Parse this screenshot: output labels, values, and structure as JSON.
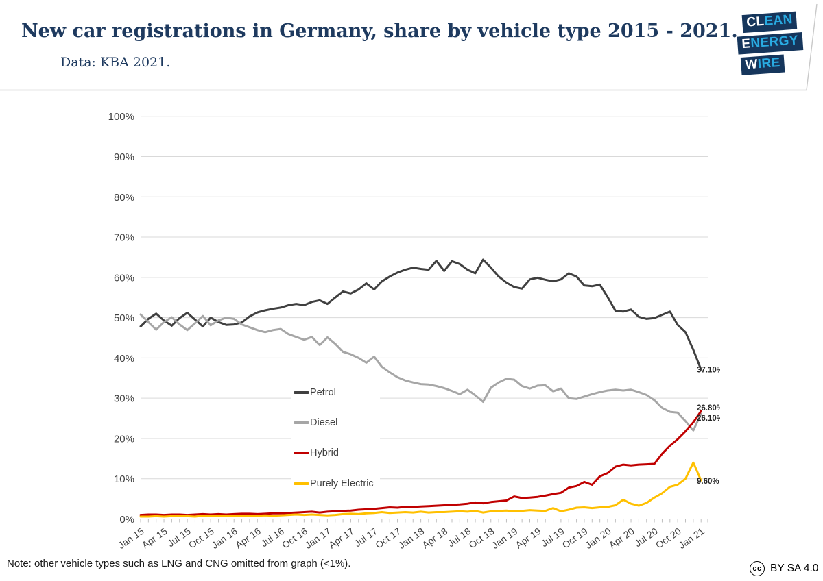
{
  "header": {
    "title": "New car registrations in Germany, share by vehicle type 2015 - 2021.",
    "subtitle": "Data: KBA 2021.",
    "logo": {
      "navy": "#16365c",
      "cyan": "#29abe2",
      "lines": [
        {
          "accent": "CL",
          "rest": "EAN"
        },
        {
          "accent": "E",
          "rest": "NERGY"
        },
        {
          "accent": "W",
          "rest": "IRE"
        }
      ]
    }
  },
  "footer": {
    "note": "Note: other vehicle types such as LNG and CNG omitted from graph (<1%).",
    "license_icon_text": "cc",
    "license": "BY SA 4.0"
  },
  "chart_data": {
    "type": "line",
    "title": "New car registrations in Germany, share by vehicle type 2015 - 2021.",
    "xlabel": "",
    "ylabel": "",
    "ylim": [
      0,
      100
    ],
    "grid": "horizontal",
    "grid_color": "#d9d9d9",
    "axis_color": "#bfbfbf",
    "tick_label_color": "#404040",
    "legend_position": "inside-center-left",
    "y_tick_labels": [
      "0%",
      "10%",
      "20%",
      "30%",
      "40%",
      "50%",
      "60%",
      "70%",
      "80%",
      "90%",
      "100%"
    ],
    "x_tick_labels": [
      "Jan 15",
      "Apr 15",
      "Jul 15",
      "Oct 15",
      "Jan 16",
      "Apr 16",
      "Jul 16",
      "Oct 16",
      "Jan 17",
      "Apr 17",
      "Jul 17",
      "Oct 17",
      "Jan 18",
      "Apr 18",
      "Jul 18",
      "Oct 18",
      "Jan 19",
      "Apr 19",
      "Jul 19",
      "Oct 19",
      "Jan 20",
      "Apr 20",
      "Jul 20",
      "Oct 20",
      "Jan 21"
    ],
    "x_tick_step": 3,
    "months_count": 73,
    "series": [
      {
        "name": "Petrol",
        "color": "#404040",
        "end_label": "37.10%",
        "values": [
          47.8,
          49.7,
          51.0,
          49.3,
          48.0,
          49.9,
          51.2,
          49.5,
          47.8,
          50.0,
          48.9,
          48.2,
          48.3,
          48.8,
          50.3,
          51.3,
          51.8,
          52.2,
          52.5,
          53.1,
          53.4,
          53.1,
          53.9,
          54.3,
          53.4,
          55.0,
          56.5,
          56.0,
          57.0,
          58.5,
          57.0,
          59.0,
          60.2,
          61.2,
          61.9,
          62.4,
          62.1,
          61.9,
          64.1,
          61.6,
          64.0,
          63.3,
          61.9,
          61.0,
          64.4,
          62.4,
          60.2,
          58.7,
          57.6,
          57.2,
          59.5,
          59.9,
          59.4,
          59.0,
          59.5,
          61.0,
          60.2,
          58.0,
          57.8,
          58.2,
          55.1,
          51.7,
          51.5,
          52.0,
          50.2,
          49.7,
          49.9,
          50.7,
          51.5,
          48.2,
          46.4,
          42.0,
          37.1
        ]
      },
      {
        "name": "Diesel",
        "color": "#a6a6a6",
        "end_label": "26.10%",
        "values": [
          50.8,
          48.9,
          47.0,
          48.9,
          50.1,
          48.3,
          46.9,
          48.6,
          50.4,
          48.1,
          49.3,
          50.0,
          49.7,
          48.3,
          47.6,
          46.9,
          46.4,
          46.9,
          47.2,
          45.9,
          45.2,
          44.5,
          45.2,
          43.2,
          45.1,
          43.5,
          41.5,
          40.9,
          40.0,
          38.8,
          40.3,
          37.8,
          36.4,
          35.2,
          34.4,
          33.9,
          33.5,
          33.4,
          33.0,
          32.5,
          31.8,
          31.0,
          32.1,
          30.7,
          29.1,
          32.6,
          33.9,
          34.8,
          34.6,
          33.0,
          32.4,
          33.1,
          33.2,
          31.7,
          32.4,
          30.0,
          29.8,
          30.4,
          31.0,
          31.5,
          31.9,
          32.1,
          31.9,
          32.1,
          31.5,
          30.8,
          29.5,
          27.6,
          26.6,
          26.4,
          24.3,
          22.0,
          26.1
        ]
      },
      {
        "name": "Hybrid",
        "color": "#c00000",
        "end_label": "26.80%",
        "values": [
          1.0,
          1.1,
          1.1,
          1.0,
          1.1,
          1.1,
          1.0,
          1.1,
          1.2,
          1.1,
          1.2,
          1.1,
          1.2,
          1.3,
          1.3,
          1.2,
          1.3,
          1.4,
          1.4,
          1.5,
          1.6,
          1.7,
          1.8,
          1.6,
          1.8,
          1.9,
          2.0,
          2.1,
          2.3,
          2.4,
          2.5,
          2.7,
          2.9,
          2.8,
          3.0,
          3.0,
          3.1,
          3.2,
          3.3,
          3.4,
          3.5,
          3.6,
          3.8,
          4.1,
          3.9,
          4.2,
          4.4,
          4.6,
          5.6,
          5.2,
          5.3,
          5.5,
          5.8,
          6.2,
          6.5,
          7.8,
          8.2,
          9.2,
          8.5,
          10.6,
          11.4,
          13.0,
          13.5,
          13.3,
          13.5,
          13.6,
          13.7,
          16.2,
          18.2,
          19.8,
          21.8,
          24.0,
          26.8
        ]
      },
      {
        "name": "Purely Electric",
        "color": "#ffc000",
        "end_label": "9.60%",
        "values": [
          0.6,
          0.6,
          0.7,
          0.6,
          0.7,
          0.7,
          0.7,
          0.6,
          0.8,
          0.7,
          0.8,
          0.7,
          0.7,
          0.8,
          0.8,
          0.8,
          0.9,
          0.8,
          0.9,
          1.0,
          1.1,
          1.0,
          1.1,
          1.0,
          0.9,
          1.0,
          1.2,
          1.3,
          1.2,
          1.4,
          1.5,
          1.7,
          1.5,
          1.6,
          1.7,
          1.6,
          1.8,
          1.6,
          1.7,
          1.7,
          1.8,
          1.9,
          1.8,
          2.0,
          1.6,
          1.9,
          2.0,
          2.1,
          1.9,
          2.0,
          2.2,
          2.1,
          2.0,
          2.7,
          1.9,
          2.3,
          2.8,
          2.9,
          2.7,
          2.9,
          3.0,
          3.4,
          4.8,
          3.8,
          3.3,
          4.0,
          5.3,
          6.4,
          8.0,
          8.5,
          10.0,
          14.0,
          9.6
        ]
      }
    ]
  }
}
